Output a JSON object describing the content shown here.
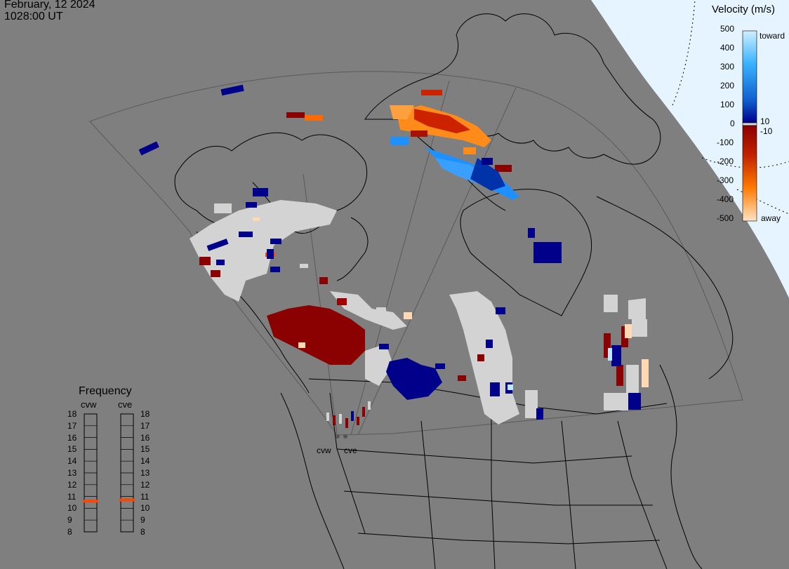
{
  "header": {
    "date": "February, 12 2024",
    "time": "1028:00 UT"
  },
  "legend": {
    "title": "Velocity (m/s)",
    "ticks": [
      "500",
      "400",
      "300",
      "200",
      "100",
      "0",
      "-100",
      "-200",
      "-300",
      "-400",
      "-500"
    ],
    "inner_pos": "10",
    "inner_neg": "-10",
    "toward": "toward",
    "away": "away",
    "colors": {
      "toward_light": "#bfe6ff",
      "toward_mid": "#1e90ff",
      "toward_dark": "#00008b",
      "away_dark": "#8b0000",
      "away_mid": "#ff6a00",
      "away_light": "#ffe4c4",
      "ground_scatter": "#d3d3d3",
      "background": "#7f7f7f",
      "dayside": "#e6f4ff"
    }
  },
  "frequency": {
    "title": "Frequency",
    "radars": [
      "cvw",
      "cve"
    ],
    "ticks": [
      "18",
      "17",
      "16",
      "15",
      "14",
      "13",
      "12",
      "11",
      "10",
      "9",
      "8"
    ],
    "cvw_value": 10.6,
    "cve_value": 10.7,
    "marker_color": "#ff4500"
  },
  "sites": {
    "cvw": "cvw",
    "cve": "cve"
  }
}
